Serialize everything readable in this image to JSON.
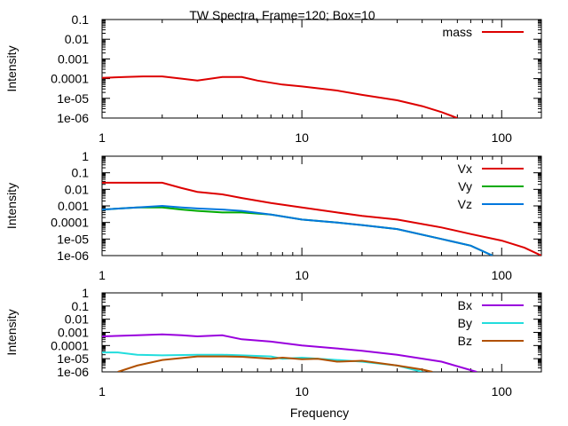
{
  "title": "TW Spectra, Frame=120; Box=10",
  "xlabel": "Frequency",
  "chart_data": [
    {
      "type": "line",
      "title": "TW Spectra, Frame=120; Box=10",
      "xlabel": "",
      "ylabel": "Intensity",
      "xscale": "log",
      "yscale": "log",
      "xlim": [
        1,
        158
      ],
      "ylim": [
        1e-06,
        0.1
      ],
      "xticks": [
        "1",
        "10",
        "100"
      ],
      "yticks": [
        "1e-06",
        "1e-05",
        "0.0001",
        "0.001",
        "0.01",
        "0.1"
      ],
      "legend": "top-right",
      "series": [
        {
          "name": "mass",
          "color": "#dd0000",
          "x": [
            1,
            1.3,
            1.6,
            2.0,
            2.5,
            3.0,
            3.5,
            4.0,
            5.0,
            6.0,
            8.0,
            10,
            15,
            20,
            30,
            40,
            50,
            60
          ],
          "y": [
            0.00011,
            0.00012,
            0.00013,
            0.00013,
            0.0001,
            8e-05,
            0.0001,
            0.00012,
            0.00012,
            8e-05,
            5e-05,
            4e-05,
            2.5e-05,
            1.5e-05,
            8e-06,
            4e-06,
            2e-06,
            1e-06
          ]
        }
      ]
    },
    {
      "type": "line",
      "xlabel": "",
      "ylabel": "Intensity",
      "xscale": "log",
      "yscale": "log",
      "xlim": [
        1,
        158
      ],
      "ylim": [
        1e-06,
        1
      ],
      "xticks": [
        "1",
        "10",
        "100"
      ],
      "yticks": [
        "1e-06",
        "1e-05",
        "0.0001",
        "0.001",
        "0.01",
        "0.1",
        "1"
      ],
      "legend": "top-right",
      "series": [
        {
          "name": "Vx",
          "color": "#dd0000",
          "x": [
            1,
            1.5,
            2.0,
            2.5,
            3.0,
            4.0,
            5.0,
            7.0,
            10,
            15,
            20,
            30,
            50,
            70,
            100,
            130,
            158
          ],
          "y": [
            0.025,
            0.025,
            0.025,
            0.012,
            0.007,
            0.005,
            0.003,
            0.0015,
            0.0008,
            0.0004,
            0.00025,
            0.00015,
            5e-05,
            2e-05,
            8e-06,
            3e-06,
            1e-06
          ]
        },
        {
          "name": "Vy",
          "color": "#00aa00",
          "x": [
            1,
            1.5,
            2.0,
            2.5,
            3.0,
            4.0,
            5.0,
            7.0,
            10,
            15,
            20,
            30,
            50,
            70,
            90
          ],
          "y": [
            0.0006,
            0.0008,
            0.0008,
            0.0006,
            0.0005,
            0.0004,
            0.0004,
            0.0003,
            0.00015,
            0.0001,
            7e-05,
            4e-05,
            1e-05,
            4e-06,
            1e-06
          ]
        },
        {
          "name": "Vz",
          "color": "#0077dd",
          "x": [
            1,
            1.5,
            2.0,
            2.5,
            3.0,
            4.0,
            5.0,
            7.0,
            10,
            15,
            20,
            30,
            50,
            70,
            90
          ],
          "y": [
            0.0006,
            0.0008,
            0.001,
            0.0008,
            0.0007,
            0.0006,
            0.0005,
            0.0003,
            0.00015,
            0.0001,
            7e-05,
            4e-05,
            1e-05,
            4e-06,
            1e-06
          ]
        }
      ]
    },
    {
      "type": "line",
      "xlabel": "Frequency",
      "ylabel": "Intensity",
      "xscale": "log",
      "yscale": "log",
      "xlim": [
        1,
        158
      ],
      "ylim": [
        1e-06,
        1
      ],
      "xticks": [
        "1",
        "10",
        "100"
      ],
      "yticks": [
        "1e-06",
        "1e-05",
        "0.0001",
        "0.001",
        "0.01",
        "0.1",
        "1"
      ],
      "legend": "top-right",
      "series": [
        {
          "name": "Bx",
          "color": "#9900dd",
          "x": [
            1,
            1.5,
            2.0,
            2.5,
            3.0,
            4.0,
            5.0,
            7.0,
            10,
            15,
            20,
            30,
            50,
            75
          ],
          "y": [
            0.0005,
            0.0006,
            0.0007,
            0.0006,
            0.0005,
            0.0006,
            0.0003,
            0.0002,
            0.0001,
            6e-05,
            4e-05,
            2e-05,
            6e-06,
            1e-06
          ]
        },
        {
          "name": "By",
          "color": "#22dddd",
          "x": [
            1,
            1.2,
            1.5,
            2.0,
            3.0,
            4.0,
            5.0,
            7.0,
            8.0,
            10,
            15,
            20,
            30,
            40
          ],
          "y": [
            3e-05,
            3e-05,
            2e-05,
            1.8e-05,
            2e-05,
            2e-05,
            1.8e-05,
            1.5e-05,
            1e-05,
            1.2e-05,
            8e-06,
            6e-06,
            3e-06,
            1e-06
          ]
        },
        {
          "name": "Bz",
          "color": "#b05000",
          "x": [
            1.2,
            1.5,
            2.0,
            3.0,
            4.0,
            5.0,
            7.0,
            8.0,
            10,
            12,
            15,
            20,
            30,
            40,
            45
          ],
          "y": [
            1e-06,
            3e-06,
            8e-06,
            1.5e-05,
            1.5e-05,
            1.4e-05,
            1e-05,
            1.2e-05,
            9e-06,
            1e-05,
            6e-06,
            7e-06,
            3e-06,
            1.5e-06,
            1e-06
          ]
        }
      ]
    }
  ]
}
